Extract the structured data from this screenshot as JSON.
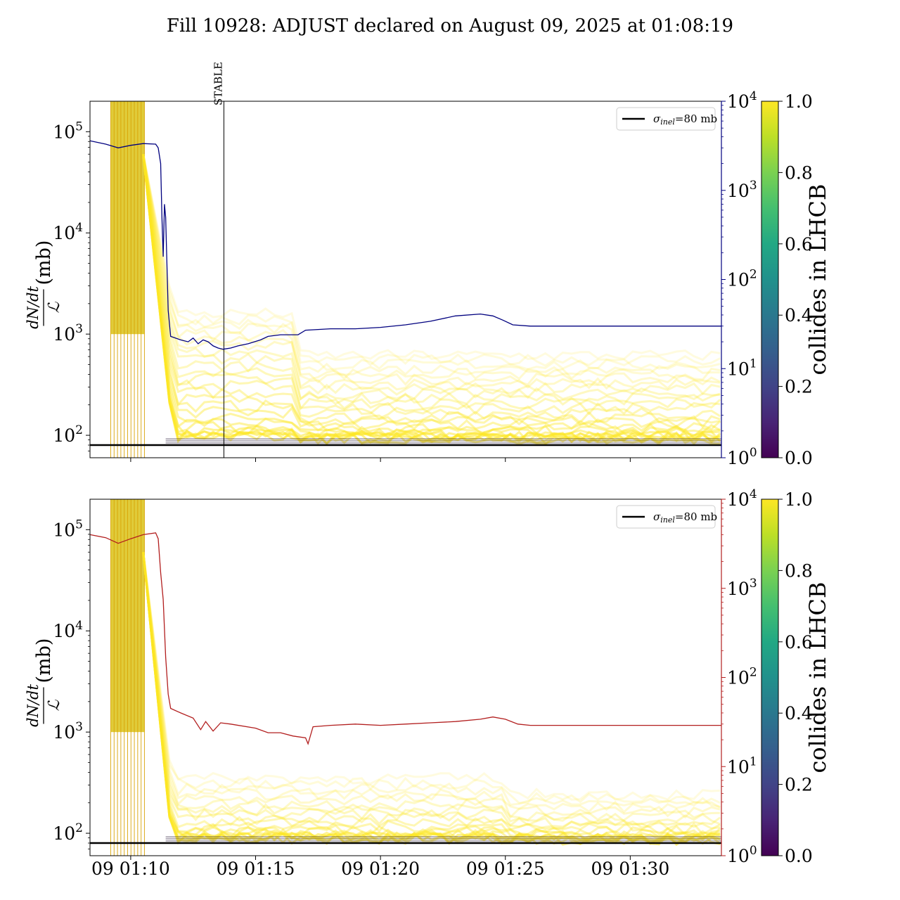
{
  "title": "Fill 10928: ADJUST declared on August 09, 2025 at 01:08:19",
  "colors": {
    "top_right_axis": "#00007f",
    "bottom_right_axis": "#b21e1e",
    "overlay_yellow": "#fde725",
    "overlay_dark": "#2a1a3a",
    "reference_line": "#000000"
  },
  "shared_x": {
    "ticks": [
      "09 01:10",
      "09 01:15",
      "09 01:20",
      "09 01:25",
      "09 01:30"
    ],
    "tick_minutes": [
      70,
      75,
      80,
      85,
      90
    ],
    "range_minutes": [
      68.37,
      93.65
    ]
  },
  "panels": [
    {
      "id": "top",
      "ylabel": "dN/dt / ℒ (mb)",
      "ylabel_num": "dN/dt",
      "ylabel_den": "ℒ",
      "ylabel_unit": "(mb)",
      "yscale": "log",
      "ylim": [
        60,
        200000
      ],
      "yticks": [
        100,
        1000,
        10000,
        100000
      ],
      "ytick_labels": [
        [
          "10",
          "2"
        ],
        [
          "10",
          "3"
        ],
        [
          "10",
          "4"
        ],
        [
          "10",
          "5"
        ]
      ],
      "right_axis": {
        "yscale": "log",
        "ylim": [
          1,
          10000
        ],
        "ticks": [
          1,
          10,
          100,
          1000,
          10000
        ],
        "tick_labels": [
          [
            "10",
            "0"
          ],
          [
            "10",
            "1"
          ],
          [
            "10",
            "2"
          ],
          [
            "10",
            "3"
          ],
          [
            "10",
            "4"
          ]
        ],
        "color": "#00007f"
      },
      "legend": {
        "label_sym": "σ",
        "label_sub": "inel",
        "label_rest": "=80 mb",
        "position": "top-right"
      },
      "reference_line": {
        "value": 80
      },
      "marker": {
        "label": "STABLE",
        "x": 73.73
      },
      "colorbar": {
        "label": "collides in LHCB",
        "ticks": [
          "0.0",
          "0.2",
          "0.4",
          "0.6",
          "0.8",
          "1.0"
        ],
        "cmap": "viridis"
      }
    },
    {
      "id": "bottom",
      "ylabel": "dN/dt / ℒ (mb)",
      "ylabel_num": "dN/dt",
      "ylabel_den": "ℒ",
      "ylabel_unit": "(mb)",
      "yscale": "log",
      "ylim": [
        60,
        200000
      ],
      "yticks": [
        100,
        1000,
        10000,
        100000
      ],
      "ytick_labels": [
        [
          "10",
          "2"
        ],
        [
          "10",
          "3"
        ],
        [
          "10",
          "4"
        ],
        [
          "10",
          "5"
        ]
      ],
      "right_axis": {
        "yscale": "log",
        "ylim": [
          1,
          10000
        ],
        "ticks": [
          1,
          10,
          100,
          1000,
          10000
        ],
        "tick_labels": [
          [
            "10",
            "0"
          ],
          [
            "10",
            "1"
          ],
          [
            "10",
            "2"
          ],
          [
            "10",
            "3"
          ],
          [
            "10",
            "4"
          ]
        ],
        "color": "#b21e1e"
      },
      "legend": {
        "label_sym": "σ",
        "label_sub": "inel",
        "label_rest": "=80 mb",
        "position": "top-right"
      },
      "reference_line": {
        "value": 80
      },
      "colorbar": {
        "label": "collides in LHCB",
        "ticks": [
          "0.0",
          "0.2",
          "0.4",
          "0.6",
          "0.8",
          "1.0"
        ],
        "cmap": "viridis"
      }
    }
  ],
  "chart_data": [
    {
      "type": "line",
      "panel": "top",
      "xlabel": "",
      "ylabel": "dN/dt / ℒ (mb)",
      "xlim_minutes": [
        68.37,
        93.65
      ],
      "ylim": [
        60,
        200000
      ],
      "yscale": "log",
      "series": [
        {
          "axis": "right",
          "color": "#00007f",
          "x": [
            68.37,
            69.0,
            69.5,
            70.0,
            70.5,
            71.0,
            71.1,
            71.2,
            71.25,
            71.3,
            71.35,
            71.4,
            71.5,
            71.6,
            72.0,
            72.3,
            72.5,
            72.7,
            72.9,
            73.1,
            73.3,
            73.5,
            73.7,
            74.0,
            74.3,
            74.7,
            75.2,
            75.5,
            76.0,
            76.7,
            77.0,
            78.0,
            79.0,
            80.0,
            81.0,
            82.0,
            83.0,
            84.0,
            84.5,
            84.9,
            85.3,
            86.0,
            87.0,
            88.0,
            89.0,
            90.0,
            91.0,
            92.0,
            93.0,
            93.65
          ],
          "y": [
            3600,
            3300,
            3000,
            3200,
            3350,
            3300,
            3000,
            2000,
            500,
            180,
            700,
            500,
            45,
            23,
            21,
            20,
            22,
            19,
            21,
            20,
            18,
            17,
            16.5,
            17,
            18,
            19,
            21,
            23,
            24,
            24,
            27,
            28,
            28,
            29,
            31,
            34,
            39,
            41,
            39,
            35,
            31,
            30,
            30,
            30,
            30,
            30,
            30,
            30,
            30,
            30
          ]
        }
      ]
    },
    {
      "type": "line",
      "panel": "bottom",
      "xlabel": "",
      "ylabel": "dN/dt / ℒ (mb)",
      "xlim_minutes": [
        68.37,
        93.65
      ],
      "ylim": [
        60,
        200000
      ],
      "yscale": "log",
      "series": [
        {
          "axis": "right",
          "color": "#b21e1e",
          "x": [
            68.37,
            69.0,
            69.5,
            70.0,
            70.5,
            71.0,
            71.1,
            71.2,
            71.3,
            71.4,
            71.5,
            71.6,
            72.0,
            72.5,
            72.8,
            73.0,
            73.3,
            73.6,
            74.0,
            75.0,
            75.5,
            76.0,
            76.5,
            77.0,
            77.1,
            77.3,
            78.0,
            79.0,
            80.0,
            81.0,
            82.0,
            83.0,
            84.0,
            84.5,
            85.0,
            85.5,
            86.0,
            88.0,
            90.0,
            92.0,
            93.65
          ],
          "y": [
            4000,
            3700,
            3200,
            3600,
            4000,
            4200,
            3600,
            1500,
            750,
            170,
            65,
            45,
            40,
            35,
            26,
            32,
            25,
            31,
            30,
            27,
            24,
            24,
            22,
            21,
            18,
            28,
            29,
            30,
            29,
            30,
            31,
            32,
            34,
            36,
            34,
            30,
            29,
            29,
            29,
            29,
            29
          ]
        }
      ]
    }
  ]
}
